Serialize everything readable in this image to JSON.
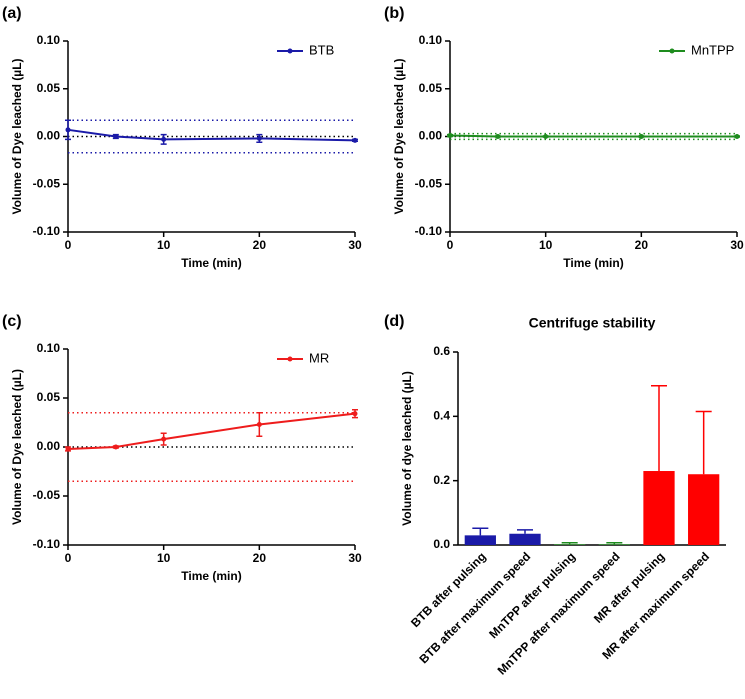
{
  "chart_data": [
    {
      "type": "line",
      "label": "(a)",
      "xlabel": "Time (min)",
      "ylabel": "Volume of Dye leached (µL)",
      "x": [
        0,
        5,
        10,
        20,
        30
      ],
      "xlim": [
        0,
        30
      ],
      "xticks": [
        0,
        10,
        20,
        30
      ],
      "ylim": [
        -0.1,
        0.1
      ],
      "yticks": [
        {
          "value": -0.1,
          "label": "-0.10"
        },
        {
          "value": -0.05,
          "label": "-0.05"
        },
        {
          "value": 0,
          "label": "0.00"
        },
        {
          "value": 0.05,
          "label": "0.05"
        },
        {
          "value": 0.1,
          "label": "0.10"
        }
      ],
      "series": [
        {
          "name": "BTB",
          "color": "#1a1aa8",
          "values": [
            0.007,
            0.0,
            -0.003,
            -0.002,
            -0.004
          ],
          "errors": [
            0.01,
            0.002,
            0.005,
            0.004,
            0.001
          ]
        }
      ],
      "reference_lines": [
        {
          "value": 0.017,
          "color": "#1a1aa8"
        },
        {
          "value": 0,
          "color": "#000000"
        },
        {
          "value": -0.017,
          "color": "#1a1aa8"
        }
      ],
      "legend": "upper right"
    },
    {
      "type": "line",
      "label": "(b)",
      "xlabel": "Time (min)",
      "ylabel": "Volume of Dye leached (µL)",
      "x": [
        0,
        5,
        10,
        20,
        30
      ],
      "xlim": [
        0,
        30
      ],
      "xticks": [
        0,
        10,
        20,
        30
      ],
      "ylim": [
        -0.1,
        0.1
      ],
      "yticks": [
        {
          "value": -0.1,
          "label": "-0.10"
        },
        {
          "value": -0.05,
          "label": "-0.05"
        },
        {
          "value": 0,
          "label": "0.00"
        },
        {
          "value": 0.05,
          "label": "0.05"
        },
        {
          "value": 0.1,
          "label": "0.10"
        }
      ],
      "series": [
        {
          "name": "MnTPP",
          "color": "#1e8c1e",
          "values": [
            0.001,
            0.0,
            0.0,
            0.0,
            0.0
          ],
          "errors": [
            0.001,
            0.0005,
            0.0005,
            0.0005,
            0.0005
          ]
        }
      ],
      "reference_lines": [
        {
          "value": 0.003,
          "color": "#1e8c1e"
        },
        {
          "value": 0,
          "color": "#000000"
        },
        {
          "value": -0.003,
          "color": "#1e8c1e"
        }
      ],
      "legend": "upper right"
    },
    {
      "type": "line",
      "label": "(c)",
      "xlabel": "Time (min)",
      "ylabel": "Volume of Dye leached (µL)",
      "x": [
        0,
        5,
        10,
        20,
        30
      ],
      "xlim": [
        0,
        30
      ],
      "xticks": [
        0,
        10,
        20,
        30
      ],
      "ylim": [
        -0.1,
        0.1
      ],
      "yticks": [
        {
          "value": -0.1,
          "label": "-0.10"
        },
        {
          "value": -0.05,
          "label": "-0.05"
        },
        {
          "value": 0,
          "label": "0.00"
        },
        {
          "value": 0.05,
          "label": "0.05"
        },
        {
          "value": 0.1,
          "label": "0.10"
        }
      ],
      "series": [
        {
          "name": "MR",
          "color": "#ee1c1c",
          "values": [
            -0.002,
            0.0,
            0.008,
            0.023,
            0.034
          ],
          "errors": [
            0.002,
            0.001,
            0.006,
            0.012,
            0.004
          ]
        }
      ],
      "reference_lines": [
        {
          "value": 0.035,
          "color": "#ee1c1c"
        },
        {
          "value": 0,
          "color": "#000000"
        },
        {
          "value": -0.035,
          "color": "#ee1c1c"
        }
      ],
      "legend": "upper right"
    },
    {
      "type": "bar",
      "label": "(d)",
      "title": "Centrifuge stability",
      "ylabel": "Volume of dye leached (µL)",
      "categories": [
        "BTB after pulsing",
        "BTB after maximum speed",
        "MnTPP after pulsing",
        "MnTPP after maximum speed",
        "MR after pulsing",
        "MR after maximum speed"
      ],
      "values": [
        0.03,
        0.035,
        0.002,
        0.002,
        0.23,
        0.22
      ],
      "errors": [
        0.022,
        0.012,
        0.005,
        0.005,
        0.265,
        0.195
      ],
      "colors": [
        "#1a1aa8",
        "#1a1aa8",
        "#1e8c1e",
        "#1e8c1e",
        "#ff0000",
        "#ff0000"
      ],
      "ylim": [
        0,
        0.6
      ],
      "yticks": [
        {
          "value": 0,
          "label": "0.0"
        },
        {
          "value": 0.2,
          "label": "0.2"
        },
        {
          "value": 0.4,
          "label": "0.4"
        },
        {
          "value": 0.6,
          "label": "0.6"
        }
      ]
    }
  ]
}
